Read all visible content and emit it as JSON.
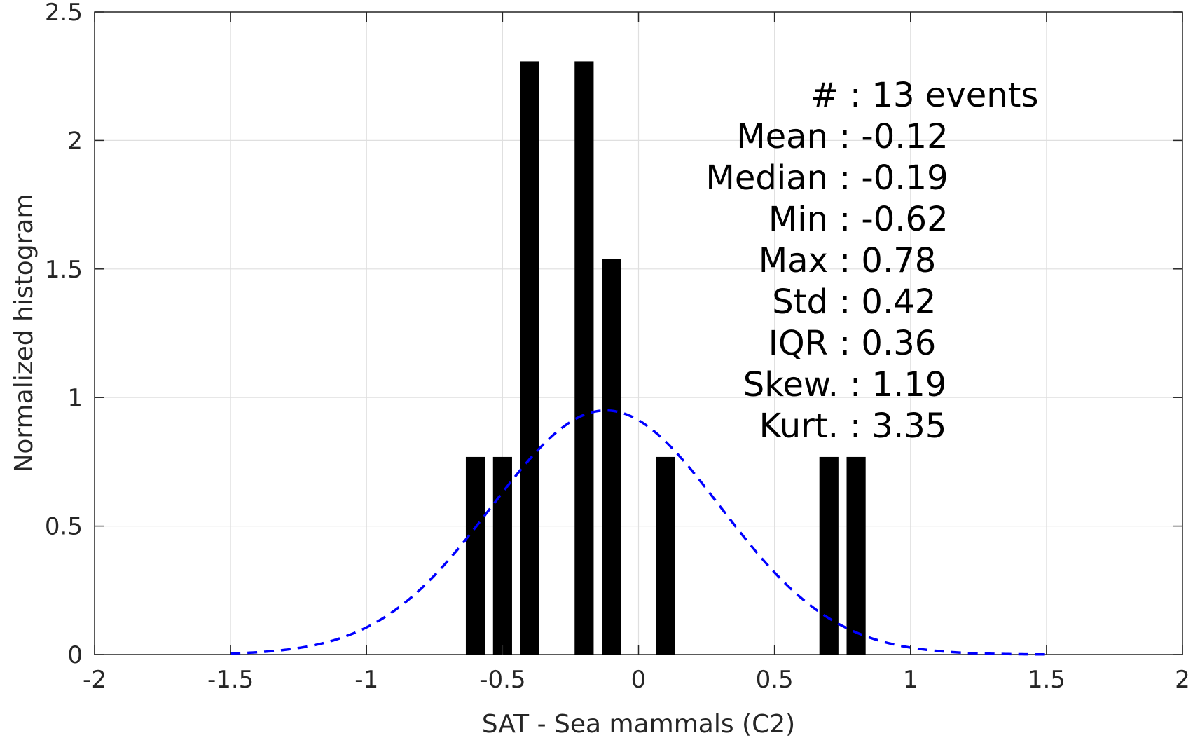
{
  "chart_data": {
    "type": "bar",
    "xlabel": "SAT - Sea mammals (C2)",
    "ylabel": "Normalized histogram",
    "xlim": [
      -2,
      2
    ],
    "ylim": [
      0,
      2.5
    ],
    "x_ticks": [
      -2,
      -1.5,
      -1,
      -0.5,
      0,
      0.5,
      1,
      1.5,
      2
    ],
    "x_tick_labels": [
      "-2",
      "-1.5",
      "-1",
      "-0.5",
      "0",
      "0.5",
      "1",
      "1.5",
      "2"
    ],
    "y_ticks": [
      0,
      0.5,
      1,
      1.5,
      2,
      2.5
    ],
    "y_tick_labels": [
      "0",
      "0.5",
      "1",
      "1.5",
      "2",
      "2.5"
    ],
    "grid": true,
    "bar_width": 0.07,
    "bar_color": "#000000",
    "bars": [
      {
        "x": -0.6,
        "value": 0.769
      },
      {
        "x": -0.5,
        "value": 0.769
      },
      {
        "x": -0.4,
        "value": 2.308
      },
      {
        "x": -0.2,
        "value": 2.308
      },
      {
        "x": -0.1,
        "value": 1.538
      },
      {
        "x": 0.1,
        "value": 0.769
      },
      {
        "x": 0.7,
        "value": 0.769
      },
      {
        "x": 0.8,
        "value": 0.769
      }
    ],
    "fit_curve": {
      "style": "dashed",
      "color": "#0000ff",
      "mean": -0.12,
      "std": 0.42,
      "x_range": [
        -1.5,
        1.5
      ]
    },
    "stats_lines": [
      {
        "label": "#",
        "value": ": 13 events"
      },
      {
        "label": "Mean",
        "value": ": -0.12"
      },
      {
        "label": "Median",
        "value": ": -0.19"
      },
      {
        "label": "Min",
        "value": ": -0.62"
      },
      {
        "label": "Max",
        "value": ": 0.78"
      },
      {
        "label": "Std",
        "value": ": 0.42"
      },
      {
        "label": "IQR",
        "value": ": 0.36"
      },
      {
        "label": "Skew.",
        "value": ": 1.19"
      },
      {
        "label": "Kurt.",
        "value": ": 3.35"
      }
    ]
  }
}
